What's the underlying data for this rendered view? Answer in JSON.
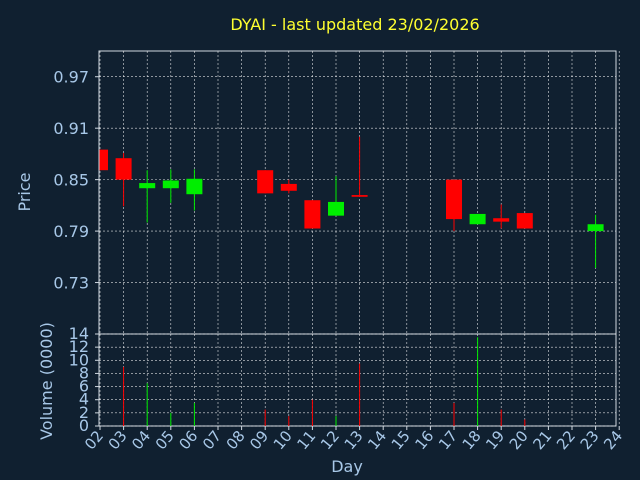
{
  "chart_data": {
    "type": "candlestick",
    "title": "DYAI - last updated 23/02/2026",
    "xlabel": "Day",
    "ylabel_price": "Price",
    "ylabel_volume": "Volume (0000)",
    "x_ticks": [
      "02",
      "03",
      "04",
      "05",
      "06",
      "07",
      "08",
      "09",
      "10",
      "11",
      "12",
      "13",
      "14",
      "15",
      "16",
      "17",
      "18",
      "19",
      "20",
      "21",
      "22",
      "23",
      "24"
    ],
    "price_ticks": [
      "0.97",
      "0.91",
      "0.85",
      "0.79",
      "0.73"
    ],
    "price_ylim": [
      0.67,
      1.0
    ],
    "volume_ticks": [
      "0",
      "2",
      "4",
      "6",
      "8",
      "10",
      "12",
      "14"
    ],
    "volume_ylim": [
      0,
      14
    ],
    "grid": true,
    "colors": {
      "up": "#00ee00",
      "down": "#ff0000",
      "background": "#102030",
      "grid": "#ffffff",
      "title": "#ffff30",
      "text": "#a8c8e8"
    },
    "candles": [
      {
        "day": "02",
        "open": 0.885,
        "close": 0.861,
        "high": 0.885,
        "low": 0.861,
        "volume": 0
      },
      {
        "day": "03",
        "open": 0.875,
        "close": 0.85,
        "high": 0.881,
        "low": 0.819,
        "volume": 9
      },
      {
        "day": "04",
        "open": 0.84,
        "close": 0.846,
        "high": 0.861,
        "low": 0.8,
        "volume": 6.5
      },
      {
        "day": "05",
        "open": 0.84,
        "close": 0.849,
        "high": 0.862,
        "low": 0.823,
        "volume": 2
      },
      {
        "day": "06",
        "open": 0.833,
        "close": 0.851,
        "high": 0.862,
        "low": 0.814,
        "volume": 3.5
      },
      {
        "day": "09",
        "open": 0.861,
        "close": 0.834,
        "high": 0.861,
        "low": 0.834,
        "volume": 2.5
      },
      {
        "day": "10",
        "open": 0.845,
        "close": 0.837,
        "high": 0.85,
        "low": 0.834,
        "volume": 1.5
      },
      {
        "day": "11",
        "open": 0.826,
        "close": 0.793,
        "high": 0.826,
        "low": 0.793,
        "volume": 4
      },
      {
        "day": "12",
        "open": 0.808,
        "close": 0.824,
        "high": 0.854,
        "low": 0.808,
        "volume": 1.5
      },
      {
        "day": "13",
        "open": 0.832,
        "close": 0.83,
        "high": 0.9,
        "low": 0.83,
        "volume": 9.5
      },
      {
        "day": "17",
        "open": 0.85,
        "close": 0.804,
        "high": 0.85,
        "low": 0.79,
        "volume": 3.5
      },
      {
        "day": "18",
        "open": 0.798,
        "close": 0.81,
        "high": 0.81,
        "low": 0.798,
        "volume": 13.5
      },
      {
        "day": "19",
        "open": 0.805,
        "close": 0.801,
        "high": 0.821,
        "low": 0.793,
        "volume": 2.5
      },
      {
        "day": "20",
        "open": 0.811,
        "close": 0.793,
        "high": 0.811,
        "low": 0.793,
        "volume": 1
      },
      {
        "day": "23",
        "open": 0.79,
        "close": 0.798,
        "high": 0.809,
        "low": 0.747,
        "volume": 0
      }
    ]
  }
}
